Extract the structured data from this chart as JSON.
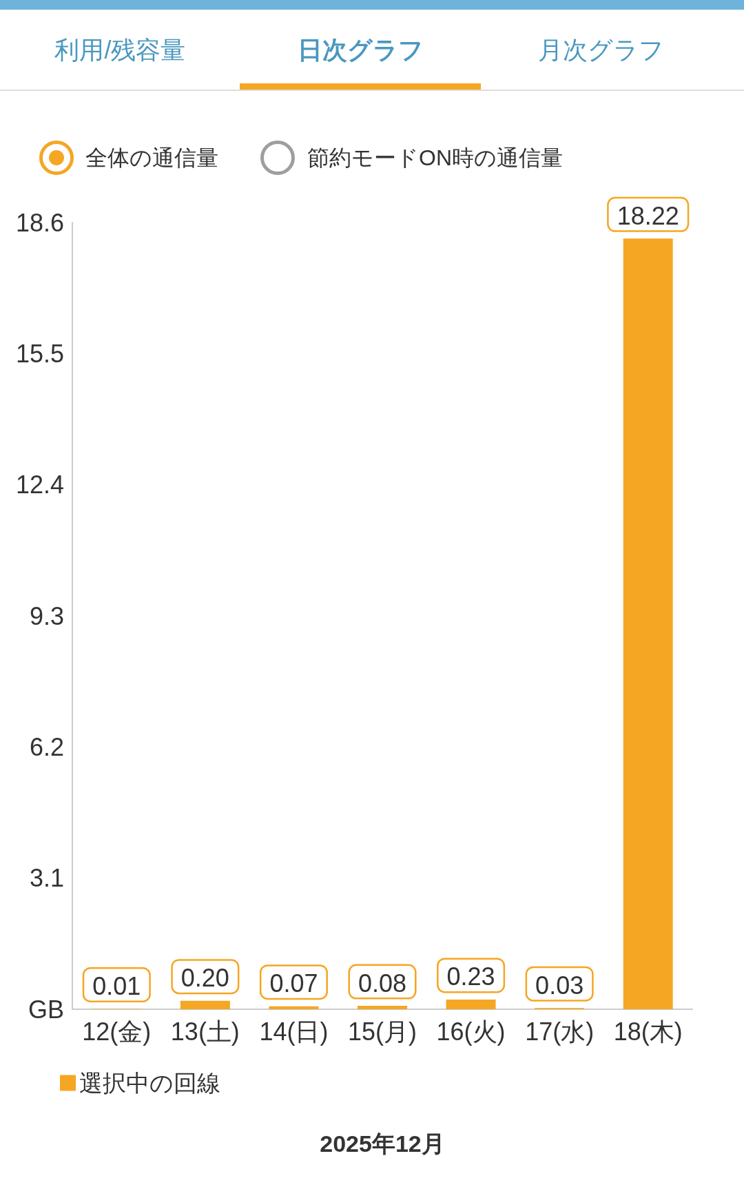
{
  "chart_data": {
    "type": "bar",
    "xlabel": "2025年12月",
    "categories": [
      "12(金)",
      "13(土)",
      "14(日)",
      "15(月)",
      "16(火)",
      "17(水)",
      "18(木)"
    ],
    "series": [
      {
        "name": "選択中の回線",
        "color": "#f5a623",
        "values": [
          0.01,
          0.2,
          0.07,
          0.08,
          0.23,
          0.03,
          18.22
        ],
        "value_labels": [
          "0.01",
          "0.20",
          "0.07",
          "0.08",
          "0.23",
          "0.03",
          "18.22"
        ]
      }
    ],
    "ylim": [
      0,
      18.6
    ],
    "yticks": [
      {
        "value": 0,
        "label": "GB"
      },
      3.1,
      6.2,
      9.3,
      12.4,
      15.5,
      18.6
    ],
    "legend": "bottom left",
    "annotations": [
      "利用/残容量",
      "日次グラフ",
      "月次グラフ",
      "全体の通信量",
      "節約モードON時の通信量"
    ]
  }
}
